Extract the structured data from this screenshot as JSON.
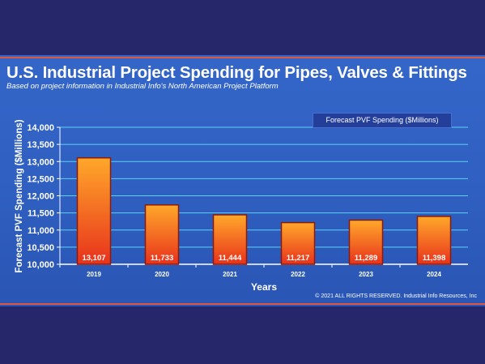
{
  "header": {
    "title": "U.S. Industrial Project Spending for Pipes, Valves & Fittings",
    "subtitle": "Based on project information in Industrial Info's North American Project Platform"
  },
  "footer": {
    "copyright": "© 2021 ALL RIGHTS RESERVED. Industrial Info Resources, Inc"
  },
  "colors": {
    "background_band": "#26266b",
    "panel": "#3466c9",
    "accent_stripe": "#e05540",
    "bar_top": "#ffa82a",
    "bar_bottom": "#e8321c",
    "bar_border": "#8b1a0a",
    "gridline": "#5bd2f5"
  },
  "chart_data": {
    "type": "bar",
    "title": "U.S. Industrial Project Spending for Pipes, Valves & Fittings",
    "subtitle": "Based on project information in Industrial Info's North American Project Platform",
    "xlabel": "Years",
    "ylabel": "Forecast PVF Spending ($Millions)",
    "categories": [
      "2019",
      "2020",
      "2021",
      "2022",
      "2023",
      "2024"
    ],
    "series": [
      {
        "name": "Forecast PVF Spending ($Millions)",
        "values": [
          13107,
          11733,
          11444,
          11217,
          11289,
          11398
        ]
      }
    ],
    "data_labels": [
      "13,107",
      "11,733",
      "11,444",
      "11,217",
      "11,289",
      "11,398"
    ],
    "ylim": [
      10000,
      14000
    ],
    "yticks": [
      10000,
      10500,
      11000,
      11500,
      12000,
      12500,
      13000,
      13500,
      14000
    ],
    "ytick_labels": [
      "10,000",
      "10,500",
      "11,000",
      "11,500",
      "12,000",
      "12,500",
      "13,000",
      "13,500",
      "14,000"
    ],
    "grid": true,
    "legend": "top-right"
  }
}
